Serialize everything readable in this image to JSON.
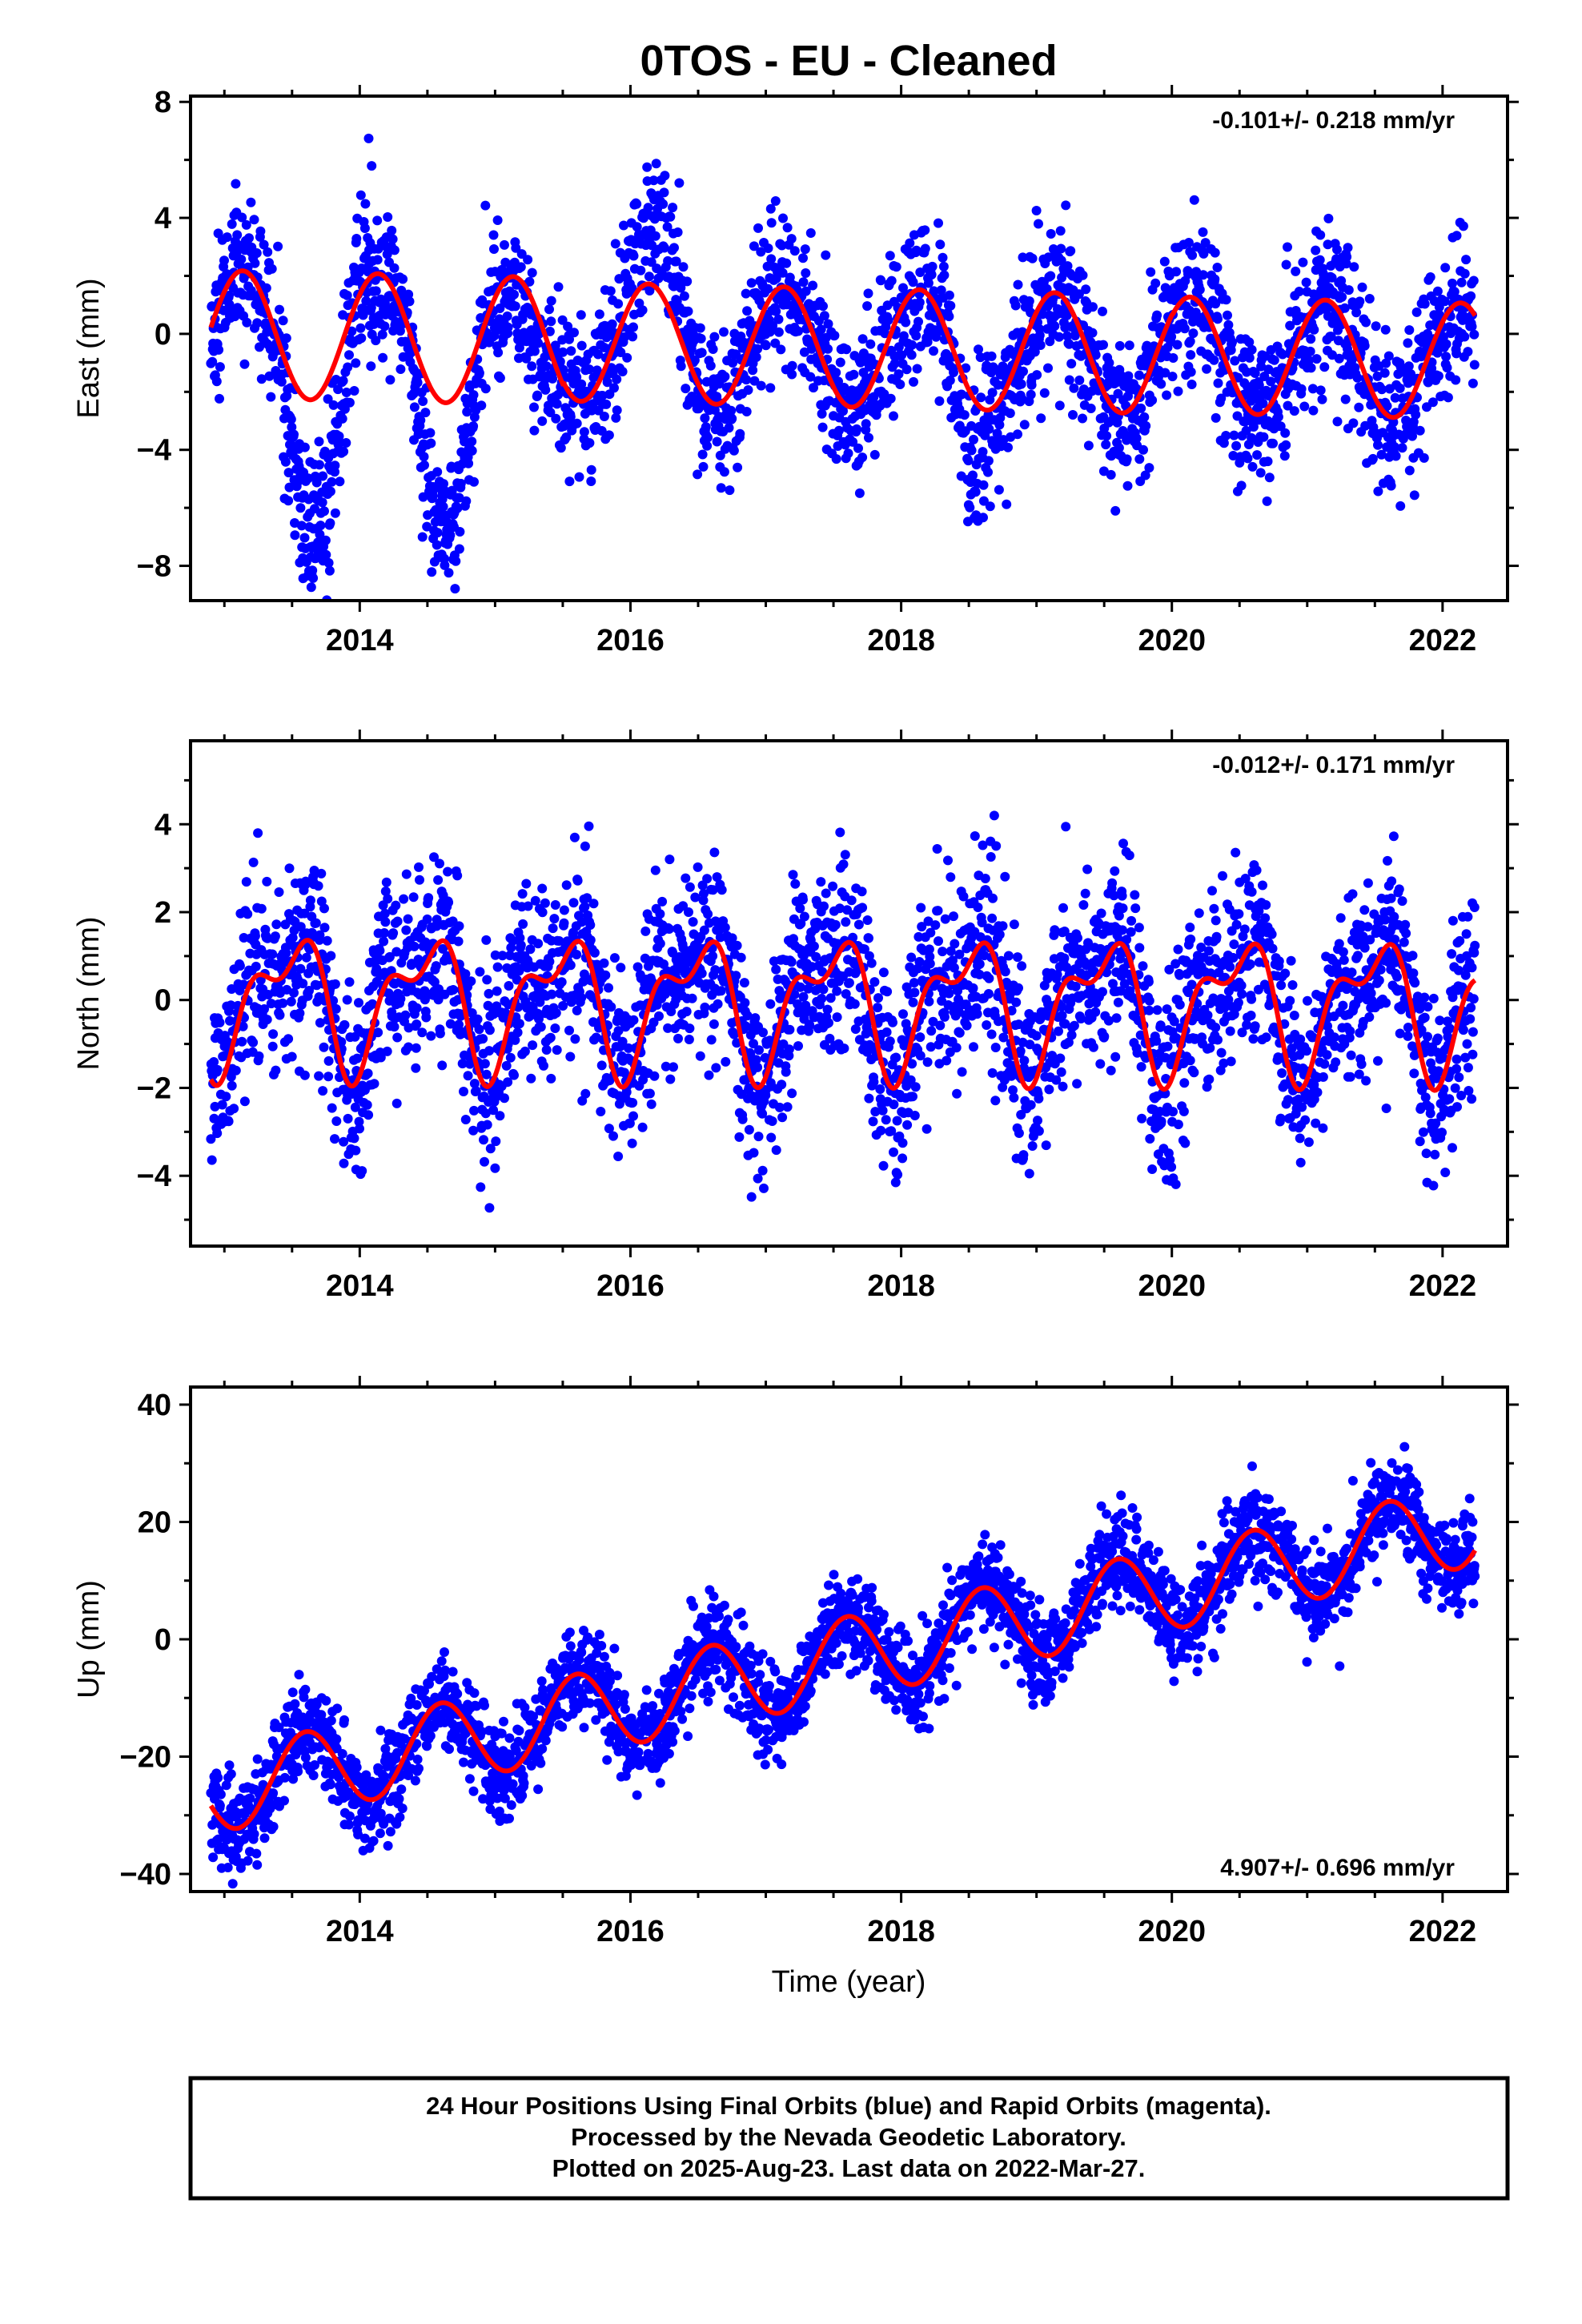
{
  "title": "0TOS  - EU - Cleaned",
  "xlabel": "Time (year)",
  "footer": {
    "line1": "24 Hour Positions Using Final Orbits (blue) and Rapid Orbits (magenta).",
    "line2": "Processed by the Nevada Geodetic Laboratory.",
    "line3": "Plotted on 2025-Aug-23. Last data on 2022-Mar-27."
  },
  "colors": {
    "data": "#0000ff",
    "model": "#ff0000",
    "frame": "#000000"
  },
  "chart_data": [
    {
      "type": "scatter",
      "component": "east",
      "ylabel": "East (mm)",
      "rate_label": "-0.101+/- 0.218 mm/yr",
      "rate_position": "top-right",
      "xlim": [
        2012.75,
        2022.48
      ],
      "ylim": [
        -9.2,
        8.2
      ],
      "xticks": [
        2014,
        2016,
        2018,
        2020,
        2022
      ],
      "yticks": [
        -8,
        -4,
        0,
        4,
        8
      ],
      "ytick_labels": [
        "−8",
        "−4",
        "0",
        "4",
        "8"
      ],
      "model": {
        "name": "",
        "offset": 0.0,
        "rate": -0.101,
        "annual": [
          {
            "start": 2012.9,
            "amp": 2.2
          },
          {
            "start": 2015.5,
            "amp": 2.05
          },
          {
            "start": 2020.0,
            "amp": 2.0
          }
        ]
      },
      "data_start": 2012.9,
      "data_end": 2022.24,
      "gaps": [],
      "noise": 1.3,
      "seed": 11,
      "dips": [
        {
          "start": 2013.4,
          "end": 2013.95,
          "depth": -4.5
        },
        {
          "start": 2014.35,
          "end": 2014.9,
          "depth": -4.2
        },
        {
          "start": 2015.0,
          "end": 2015.5,
          "depth": -1.5
        },
        {
          "start": 2015.95,
          "end": 2016.45,
          "depth": 2.0
        },
        {
          "start": 2018.35,
          "end": 2018.65,
          "depth": -2.2
        }
      ]
    },
    {
      "type": "scatter",
      "component": "north",
      "ylabel": "North (mm)",
      "rate_label": "-0.012+/- 0.171 mm/yr",
      "rate_position": "top-right",
      "xlim": [
        2012.75,
        2022.48
      ],
      "ylim": [
        -5.6,
        5.9
      ],
      "xticks": [
        2014,
        2016,
        2018,
        2020,
        2022
      ],
      "yticks": [
        -4,
        -2,
        0,
        2,
        4
      ],
      "ytick_labels": [
        "−4",
        "−2",
        "0",
        "2",
        "4"
      ],
      "model": {
        "name": "",
        "offset": 0.0,
        "rate": -0.012,
        "semi": true
      },
      "data_start": 2012.9,
      "data_end": 2022.24,
      "gaps": [],
      "noise": 1.05,
      "seed": 23,
      "dips": []
    },
    {
      "type": "scatter",
      "component": "up",
      "ylabel": "Up (mm)",
      "rate_label": "4.907+/- 0.696 mm/yr",
      "rate_position": "bottom-right",
      "xlim": [
        2012.75,
        2022.48
      ],
      "ylim": [
        -43,
        43
      ],
      "xticks": [
        2014,
        2016,
        2018,
        2020,
        2022
      ],
      "yticks": [
        -40,
        -20,
        0,
        20,
        40
      ],
      "ytick_labels": [
        "−40",
        "−20",
        "0",
        "20",
        "40"
      ],
      "model": {
        "name": "",
        "offset": -25.5,
        "rate": 4.907,
        "t0": 2012.9,
        "annual_amp": 7.0,
        "annual_peak": 2013.6
      },
      "data_start": 2012.9,
      "data_end": 2022.24,
      "gaps": [],
      "noise": 4.0,
      "seed": 37,
      "dips": []
    }
  ]
}
